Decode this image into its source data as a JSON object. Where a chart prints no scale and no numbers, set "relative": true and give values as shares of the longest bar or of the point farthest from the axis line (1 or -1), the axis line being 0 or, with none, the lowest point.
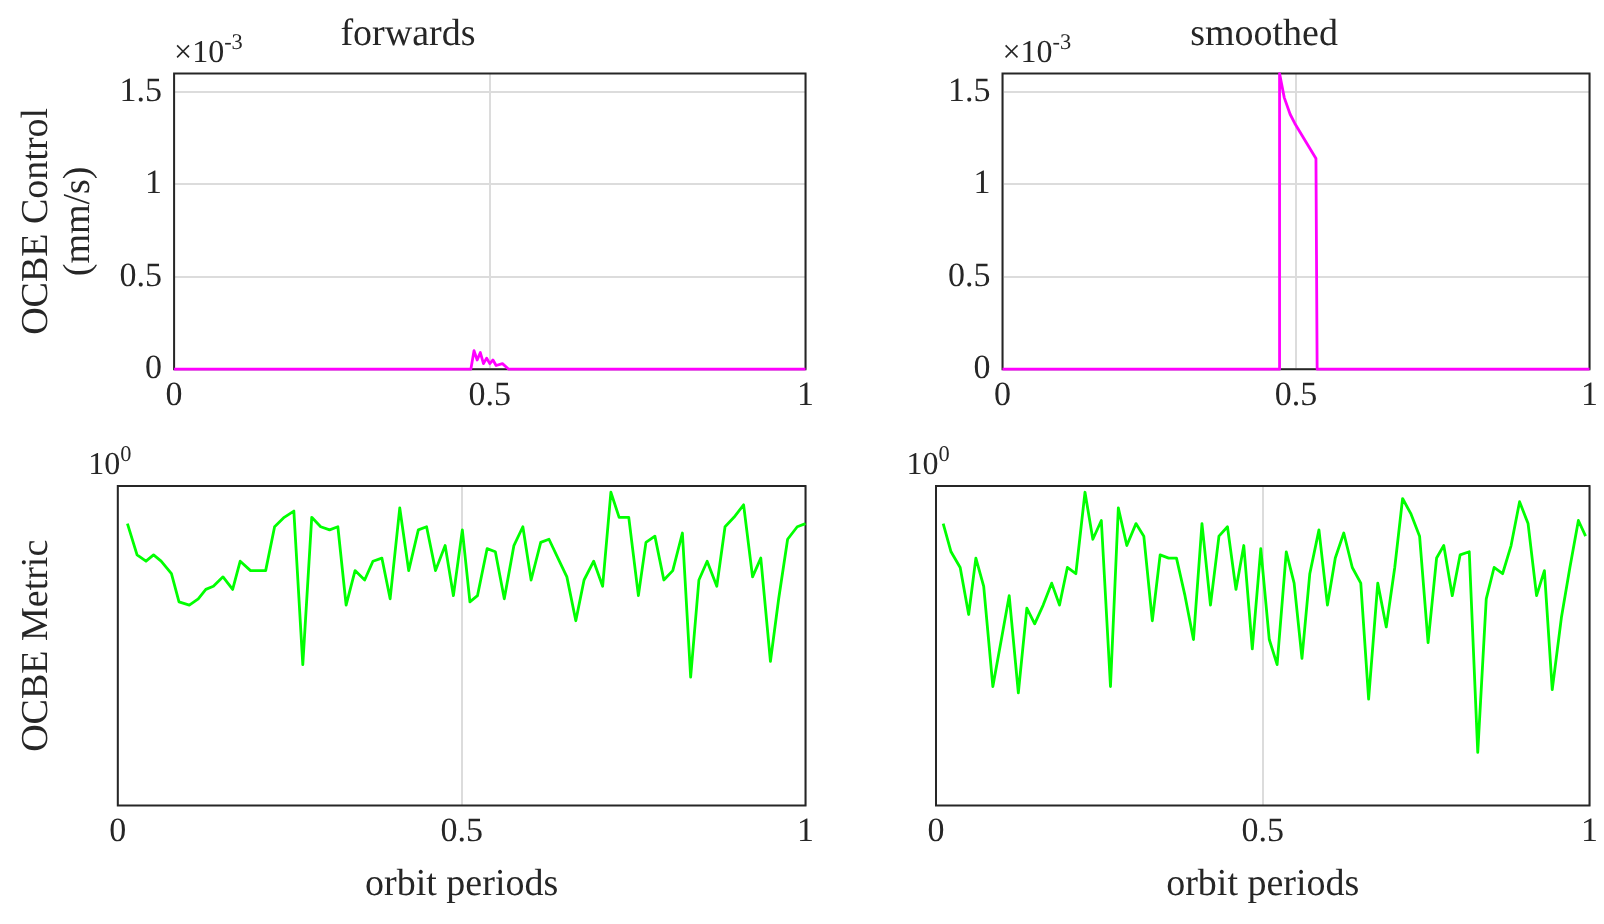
{
  "chart_data": [
    {
      "type": "line",
      "title": "forwards",
      "ylabel": "OCBE Control (mm/s)",
      "annotations": [
        "×10$^{-3}$"
      ],
      "xlim": [
        0,
        1
      ],
      "xticks": [
        0,
        0.5,
        1
      ],
      "ylim": [
        0,
        1.6
      ],
      "yticks": [
        0,
        0.5,
        1,
        1.5
      ],
      "grid": true,
      "series": [
        {
          "color": "#ff00ff",
          "x": [
            0,
            0.47,
            0.475,
            0.48,
            0.485,
            0.49,
            0.495,
            0.5,
            0.505,
            0.51,
            0.52,
            0.53,
            1
          ],
          "values": [
            0,
            0,
            0.1,
            0.05,
            0.09,
            0.03,
            0.06,
            0.03,
            0.05,
            0.02,
            0.03,
            0,
            0
          ]
        }
      ]
    },
    {
      "type": "line",
      "title": "smoothed",
      "annotations": [
        "×10$^{-3}$"
      ],
      "xlim": [
        0,
        1
      ],
      "xticks": [
        0,
        0.5,
        1
      ],
      "ylim": [
        0,
        1.6
      ],
      "yticks": [
        0,
        0.5,
        1,
        1.5
      ],
      "grid": true,
      "series": [
        {
          "color": "#ff00ff",
          "x": [
            0,
            0.47,
            0.472,
            0.48,
            0.49,
            0.498,
            0.534,
            0.536,
            1
          ],
          "values": [
            0,
            0,
            1.6,
            1.47,
            1.38,
            1.33,
            1.14,
            0,
            0
          ]
        }
      ]
    },
    {
      "type": "line",
      "ylabel": "OCBE Metric",
      "xlabel": "orbit periods",
      "annotations": [
        "10$^{0}$"
      ],
      "relative": true,
      "xlim": [
        0,
        1
      ],
      "xticks": [
        0,
        0.5,
        1
      ],
      "grid": "x",
      "series": [
        {
          "color": "#00ff00",
          "x": [
            0.014,
            0.028,
            0.041,
            0.052,
            0.063,
            0.078,
            0.089,
            0.104,
            0.117,
            0.128,
            0.139,
            0.153,
            0.167,
            0.178,
            0.193,
            0.215,
            0.228,
            0.242,
            0.256,
            0.269,
            0.282,
            0.295,
            0.308,
            0.32,
            0.332,
            0.345,
            0.359,
            0.371,
            0.384,
            0.396,
            0.41,
            0.423,
            0.437,
            0.449,
            0.462,
            0.476,
            0.488,
            0.501,
            0.512,
            0.523,
            0.537,
            0.549,
            0.562,
            0.576,
            0.589,
            0.601,
            0.615,
            0.627,
            0.64,
            0.653,
            0.666,
            0.678,
            0.692,
            0.705,
            0.717,
            0.729,
            0.743,
            0.757,
            0.768,
            0.781,
            0.794,
            0.807,
            0.821,
            0.833,
            0.845,
            0.857,
            0.871,
            0.883,
            0.896,
            0.91,
            0.923,
            0.935,
            0.949,
            0.961,
            0.974,
            0.988,
            1
          ],
          "values": [
            0.9,
            0.8,
            0.78,
            0.8,
            0.78,
            0.74,
            0.65,
            0.64,
            0.66,
            0.69,
            0.7,
            0.73,
            0.69,
            0.78,
            0.75,
            0.75,
            0.89,
            0.92,
            0.94,
            0.45,
            0.92,
            0.89,
            0.88,
            0.89,
            0.64,
            0.75,
            0.72,
            0.78,
            0.79,
            0.66,
            0.95,
            0.75,
            0.88,
            0.89,
            0.75,
            0.83,
            0.67,
            0.88,
            0.65,
            0.67,
            0.82,
            0.81,
            0.66,
            0.83,
            0.89,
            0.72,
            0.84,
            0.85,
            0.79,
            0.73,
            0.59,
            0.72,
            0.78,
            0.7,
            1,
            0.92,
            0.92,
            0.67,
            0.84,
            0.86,
            0.72,
            0.75,
            0.87,
            0.41,
            0.72,
            0.78,
            0.7,
            0.89,
            0.92,
            0.96,
            0.73,
            0.79,
            0.46,
            0.66,
            0.85,
            0.89,
            0.9
          ]
        }
      ]
    },
    {
      "type": "line",
      "xlabel": "orbit periods",
      "annotations": [
        "10$^{0}$"
      ],
      "relative": true,
      "xlim": [
        0,
        1
      ],
      "xticks": [
        0,
        0.5,
        1
      ],
      "grid": "x",
      "series": [
        {
          "color": "#00ff00",
          "x": [
            0.011,
            0.023,
            0.037,
            0.05,
            0.061,
            0.073,
            0.087,
            0.1,
            0.112,
            0.126,
            0.139,
            0.151,
            0.164,
            0.177,
            0.189,
            0.201,
            0.214,
            0.228,
            0.24,
            0.253,
            0.267,
            0.279,
            0.292,
            0.306,
            0.318,
            0.331,
            0.343,
            0.356,
            0.368,
            0.381,
            0.394,
            0.407,
            0.42,
            0.433,
            0.446,
            0.459,
            0.471,
            0.484,
            0.497,
            0.51,
            0.522,
            0.536,
            0.548,
            0.56,
            0.572,
            0.586,
            0.599,
            0.611,
            0.624,
            0.637,
            0.65,
            0.662,
            0.676,
            0.689,
            0.702,
            0.714,
            0.727,
            0.74,
            0.753,
            0.766,
            0.777,
            0.79,
            0.802,
            0.816,
            0.829,
            0.842,
            0.854,
            0.867,
            0.88,
            0.893,
            0.906,
            0.919,
            0.931,
            0.943,
            0.957,
            0.97,
            0.983,
            0.994
          ],
          "values": [
            0.9,
            0.81,
            0.76,
            0.61,
            0.79,
            0.7,
            0.38,
            0.53,
            0.67,
            0.36,
            0.63,
            0.58,
            0.64,
            0.71,
            0.64,
            0.76,
            0.74,
            1,
            0.85,
            0.91,
            0.38,
            0.95,
            0.83,
            0.9,
            0.86,
            0.59,
            0.8,
            0.79,
            0.79,
            0.67,
            0.53,
            0.9,
            0.64,
            0.86,
            0.89,
            0.69,
            0.83,
            0.5,
            0.82,
            0.53,
            0.45,
            0.81,
            0.71,
            0.47,
            0.74,
            0.88,
            0.64,
            0.79,
            0.87,
            0.76,
            0.71,
            0.34,
            0.71,
            0.57,
            0.76,
            0.98,
            0.93,
            0.86,
            0.52,
            0.79,
            0.83,
            0.67,
            0.8,
            0.81,
            0.17,
            0.66,
            0.76,
            0.74,
            0.83,
            0.97,
            0.9,
            0.67,
            0.75,
            0.37,
            0.6,
            0.76,
            0.91,
            0.86
          ]
        }
      ]
    }
  ]
}
